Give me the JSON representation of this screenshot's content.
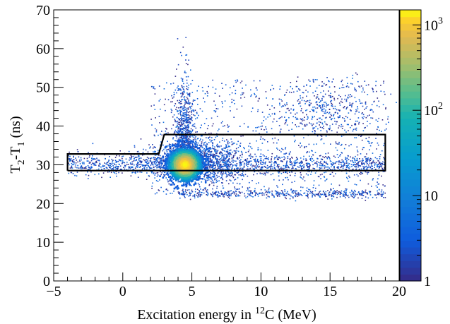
{
  "chart_data": {
    "type": "heatmap",
    "title": "",
    "xlabel": {
      "prefix": "Excitation energy in ",
      "superscript": "12",
      "suffix": "C (MeV)"
    },
    "ylabel": {
      "t2": "T",
      "t2_sub": "2",
      "dash": "-T",
      "t1_sub": "1",
      "unit": " (ns)"
    },
    "xlim": [
      -5,
      20
    ],
    "ylim": [
      0,
      70
    ],
    "x_ticks": [
      -5,
      0,
      5,
      10,
      15,
      20
    ],
    "x_tick_labels": [
      "−5",
      "0",
      "5",
      "10",
      "15",
      "20"
    ],
    "y_ticks": [
      0,
      10,
      20,
      30,
      40,
      50,
      60,
      70
    ],
    "y_tick_labels": [
      "0",
      "10",
      "20",
      "30",
      "40",
      "50",
      "60",
      "70"
    ],
    "colorbar": {
      "scale": "log",
      "range": [
        1,
        1500
      ],
      "tick_labels": [
        {
          "value": 1,
          "base": "1",
          "exp": ""
        },
        {
          "value": 10,
          "base": "10",
          "exp": ""
        },
        {
          "value": 100,
          "base": "10",
          "exp": "2"
        },
        {
          "value": 1000,
          "base": "10",
          "exp": "3"
        }
      ]
    },
    "gate_polygon": [
      [
        -4,
        28.5
      ],
      [
        19,
        28.5
      ],
      [
        19,
        37.8
      ],
      [
        3.0,
        37.8
      ],
      [
        2.6,
        32.8
      ],
      [
        -4,
        32.8
      ]
    ],
    "peak": {
      "x": 4.5,
      "y": 30
    }
  }
}
